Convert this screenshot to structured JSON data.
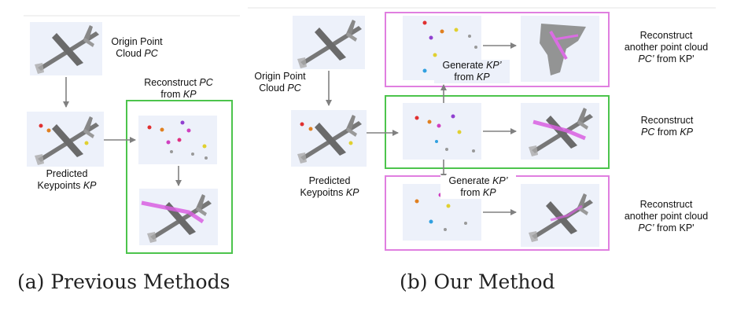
{
  "colors": {
    "green_box": "#4cc44c",
    "magenta_box": "#e07fe0",
    "arrow": "#808080",
    "panel_bg": "#edf1fa",
    "airplane": "#6f6f6f",
    "keypoint_link": "#d85fe0"
  },
  "left": {
    "origin_label": [
      "Origin Point",
      "Cloud "
    ],
    "origin_italic": "PC",
    "predicted_label": "Predicted",
    "predicted_label2": "Keypoints ",
    "predicted_italic": "KP",
    "reconstruct_label": "Reconstruct ",
    "reconstruct_italic": "PC",
    "reconstruct_from": "from ",
    "reconstruct_from_italic": "KP",
    "caption": "(a) Previous Methods"
  },
  "right": {
    "origin_label": "Origin Point",
    "origin_label2": "Cloud ",
    "origin_italic": "PC",
    "predicted_label": "Predicted",
    "predicted_label2": "Keypoitns ",
    "predicted_italic": "KP",
    "generate_top": "Generate ",
    "generate_top_italic": "KP’",
    "generate_top_from": "from ",
    "generate_top_from_italic": "KP",
    "generate_bottom": "Generate ",
    "generate_bottom_italic": "KP’",
    "generate_bottom_from": "from ",
    "generate_bottom_from_italic": "KP",
    "recon_another_top_1": "Reconstruct",
    "recon_another_top_2": "another point cloud",
    "recon_another_top_italic": "PC’",
    "recon_another_top_from": " from KP'",
    "recon_middle_1": "Reconstruct",
    "recon_middle_italic": "PC",
    "recon_middle_from": " from ",
    "recon_middle_from_italic": "KP",
    "recon_another_bottom_1": "Reconstruct",
    "recon_another_bottom_2": "another point cloud",
    "recon_another_bottom_italic": "PC’",
    "recon_another_bottom_from": " from KP'",
    "caption": "(b) Our Method"
  }
}
